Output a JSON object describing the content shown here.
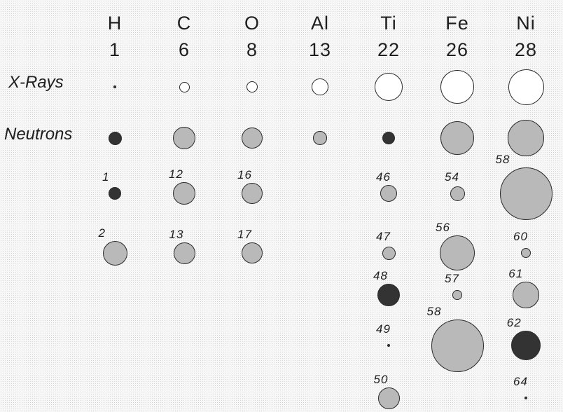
{
  "elements": [
    {
      "symbol": "H",
      "z": "1"
    },
    {
      "symbol": "C",
      "z": "6"
    },
    {
      "symbol": "O",
      "z": "8"
    },
    {
      "symbol": "Al",
      "z": "13"
    },
    {
      "symbol": "Ti",
      "z": "22"
    },
    {
      "symbol": "Fe",
      "z": "26"
    },
    {
      "symbol": "Ni",
      "z": "28"
    }
  ],
  "rows": {
    "xrays_label": "X-Rays",
    "neutrons_label": "Neutrons"
  },
  "colors": {
    "open": "#ffffff",
    "gray": "#b9b9b9",
    "dark": "#333333",
    "outline": "#2a2a2a"
  },
  "xrays": [
    {
      "element": "H",
      "size": 0.07,
      "fill": "dark"
    },
    {
      "element": "C",
      "size": 0.3,
      "fill": "open"
    },
    {
      "element": "O",
      "size": 0.32,
      "fill": "open"
    },
    {
      "element": "Al",
      "size": 0.47,
      "fill": "open"
    },
    {
      "element": "Ti",
      "size": 0.8,
      "fill": "open"
    },
    {
      "element": "Fe",
      "size": 0.97,
      "fill": "open"
    },
    {
      "element": "Ni",
      "size": 1.02,
      "fill": "open"
    }
  ],
  "neutrons": [
    {
      "element": "H",
      "size": 0.38,
      "fill": "dark"
    },
    {
      "element": "C",
      "size": 0.64,
      "fill": "gray"
    },
    {
      "element": "O",
      "size": 0.6,
      "fill": "gray"
    },
    {
      "element": "Al",
      "size": 0.39,
      "fill": "gray"
    },
    {
      "element": "Ti",
      "size": 0.37,
      "fill": "dark"
    },
    {
      "element": "Fe",
      "size": 0.97,
      "fill": "gray"
    },
    {
      "element": "Ni",
      "size": 1.03,
      "fill": "gray"
    }
  ],
  "isotopes": [
    {
      "element": "H",
      "mass": "1",
      "slot": 0,
      "size": 0.36,
      "fill": "dark"
    },
    {
      "element": "H",
      "mass": "2",
      "slot": 1,
      "size": 0.7,
      "fill": "gray"
    },
    {
      "element": "C",
      "mass": "12",
      "slot": 0,
      "size": 0.64,
      "fill": "gray"
    },
    {
      "element": "C",
      "mass": "13",
      "slot": 1,
      "size": 0.62,
      "fill": "gray"
    },
    {
      "element": "O",
      "mass": "16",
      "slot": 0,
      "size": 0.6,
      "fill": "gray"
    },
    {
      "element": "O",
      "mass": "17",
      "slot": 1,
      "size": 0.6,
      "fill": "gray"
    },
    {
      "element": "Ti",
      "mass": "46",
      "slot": 0,
      "size": 0.48,
      "fill": "gray"
    },
    {
      "element": "Ti",
      "mass": "47",
      "slot": 1,
      "size": 0.38,
      "fill": "gray"
    },
    {
      "element": "Ti",
      "mass": "48",
      "slot": 2,
      "size": 0.64,
      "fill": "dark"
    },
    {
      "element": "Ti",
      "mass": "49",
      "slot": 3,
      "size": 0.09,
      "fill": "dark"
    },
    {
      "element": "Ti",
      "mass": "50",
      "slot": 4,
      "size": 0.62,
      "fill": "gray"
    },
    {
      "element": "Fe",
      "mass": "54",
      "slot": 0,
      "size": 0.42,
      "fill": "gray"
    },
    {
      "element": "Fe",
      "mass": "56",
      "slot": 1,
      "size": 1.0,
      "fill": "gray"
    },
    {
      "element": "Fe",
      "mass": "57",
      "slot": 2,
      "size": 0.27,
      "fill": "gray"
    },
    {
      "element": "Fe",
      "mass": "58",
      "slot": 3,
      "size": 1.5,
      "fill": "gray"
    },
    {
      "element": "Ni",
      "mass": "58",
      "slot": 0,
      "size": 1.5,
      "fill": "gray"
    },
    {
      "element": "Ni",
      "mass": "60",
      "slot": 1,
      "size": 0.29,
      "fill": "gray"
    },
    {
      "element": "Ni",
      "mass": "61",
      "slot": 2,
      "size": 0.75,
      "fill": "gray"
    },
    {
      "element": "Ni",
      "mass": "62",
      "slot": 3,
      "size": 0.85,
      "fill": "dark"
    },
    {
      "element": "Ni",
      "mass": "64",
      "slot": 4,
      "size": 0.08,
      "fill": "dark"
    }
  ]
}
